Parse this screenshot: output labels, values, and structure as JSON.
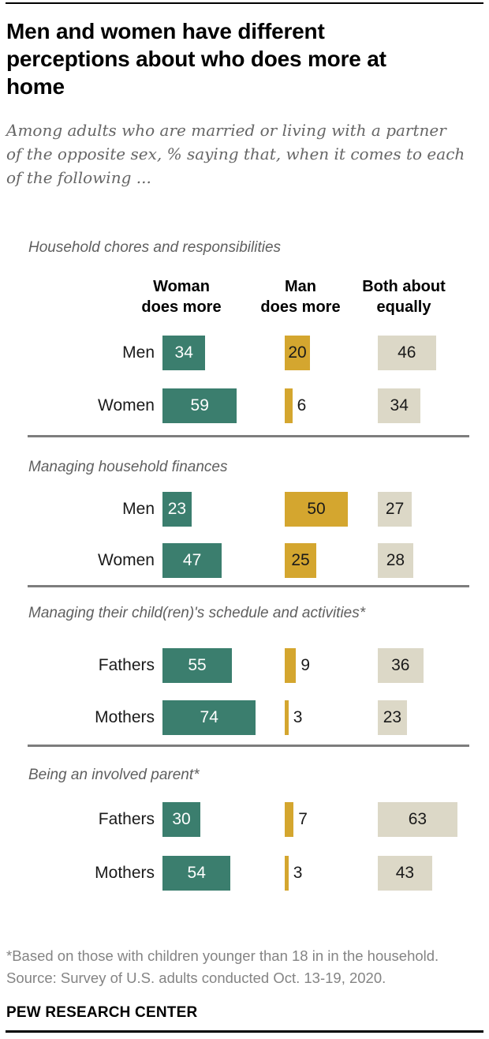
{
  "header": {
    "title_lines": [
      "Men and women have different",
      "perceptions about who does more at",
      "home"
    ],
    "subtitle_lines": [
      "Among adults who are married or living with a partner",
      "of the opposite sex, % saying that, when it comes to each",
      "of the following ..."
    ]
  },
  "columns": [
    {
      "label": "Woman\ndoes more"
    },
    {
      "label": "Man\ndoes more"
    },
    {
      "label": "Both about\nequally"
    }
  ],
  "chart_data": {
    "type": "bar",
    "orientation": "horizontal",
    "unit": "%",
    "title": "Men and women have different perceptions about who does more at home",
    "subtitle": "Among adults who are married or living with a partner of the opposite sex, % saying that, when it comes to each of the following ...",
    "series_labels": [
      "Woman does more",
      "Man does more",
      "Both about equally"
    ],
    "series_colors": [
      "#3B7E6E",
      "#D4A62F",
      "#DCD8C7"
    ],
    "xlim": [
      0,
      100
    ],
    "value_labels_shown": true,
    "legend_position": "column-headers-top",
    "grid": false,
    "groups": [
      {
        "heading": "Household chores and responsibilities",
        "rows": [
          {
            "label": "Men",
            "values": [
              34,
              20,
              46
            ]
          },
          {
            "label": "Women",
            "values": [
              59,
              6,
              34
            ]
          }
        ]
      },
      {
        "heading": "Managing household finances",
        "rows": [
          {
            "label": "Men",
            "values": [
              23,
              50,
              27
            ]
          },
          {
            "label": "Women",
            "values": [
              47,
              25,
              28
            ]
          }
        ]
      },
      {
        "heading": "Managing their child(ren)'s schedule and activities*",
        "rows": [
          {
            "label": "Fathers",
            "values": [
              55,
              9,
              36
            ]
          },
          {
            "label": "Mothers",
            "values": [
              74,
              3,
              23
            ]
          }
        ]
      },
      {
        "heading": "Being an involved parent*",
        "rows": [
          {
            "label": "Fathers",
            "values": [
              30,
              7,
              63
            ]
          },
          {
            "label": "Mothers",
            "values": [
              54,
              3,
              43
            ]
          }
        ]
      }
    ]
  },
  "footer": {
    "note1": "*Based on those with children younger than 18 in in the household.",
    "note2": "Source: Survey of U.S. adults conducted Oct. 13-19, 2020.",
    "brand": "PEW RESEARCH CENTER"
  }
}
